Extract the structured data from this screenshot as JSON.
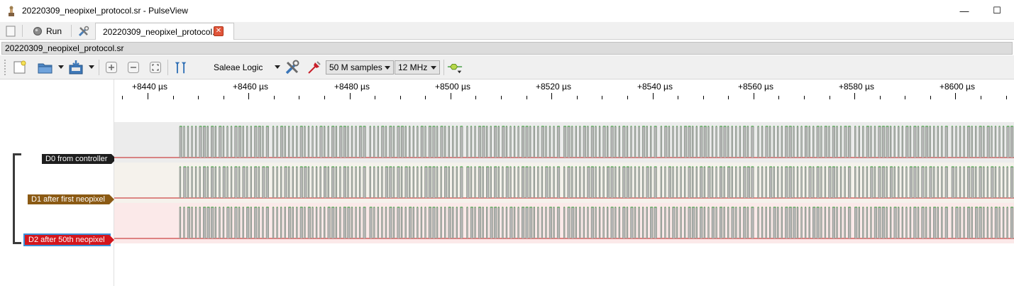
{
  "window": {
    "title": "20220309_neopixel_protocol.sr - PulseView",
    "minimize_glyph": "—",
    "maximize_glyph": "☐"
  },
  "tabs": {
    "run_label": "Run",
    "document_tab": "20220309_neopixel_protocol.sr",
    "close_glyph": "✕"
  },
  "session": {
    "name": "20220309_neopixel_protocol.sr"
  },
  "toolbar": {
    "device": "Saleae Logic",
    "samples": "50 M samples",
    "samplerate": "12 MHz"
  },
  "ruler": {
    "ticks": [
      "+8440 µs",
      "+8460 µs",
      "+8480 µs",
      "+8500 µs",
      "+8520 µs",
      "+8540 µs",
      "+8560 µs",
      "+8580 µs",
      "+8600 µs"
    ]
  },
  "channels": [
    {
      "name": "D0 from controller",
      "color": "#1e1e1e",
      "bg": "#ececec"
    },
    {
      "name": "D1 after first neopixel",
      "color": "#8b5a14",
      "bg": "#f5f2ec"
    },
    {
      "name": "D2 after 50th neopixel",
      "color": "#d4151c",
      "bg": "#fbe9e9"
    }
  ],
  "colors": {
    "signal_high": "#2aa52a",
    "signal_low": "#c21a1a",
    "pulse_fill": "#b5b5b5"
  }
}
